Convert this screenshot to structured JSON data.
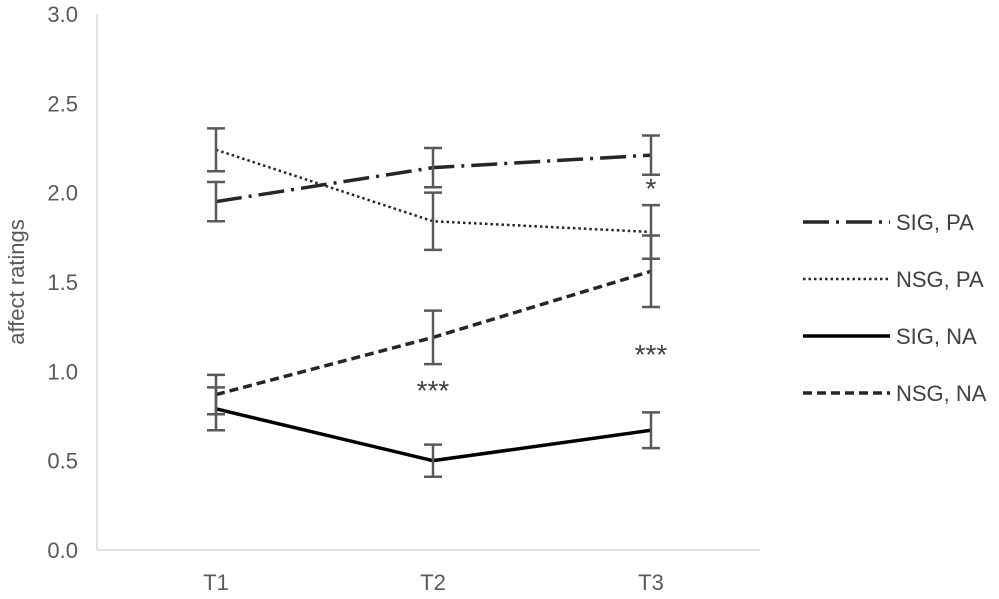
{
  "chart_data": {
    "type": "line",
    "title": "",
    "xlabel": "",
    "ylabel": "affect ratings",
    "categories": [
      "T1",
      "T2",
      "T3"
    ],
    "ylim": [
      0.0,
      3.0
    ],
    "yticks": [
      "0.0",
      "0.5",
      "1.0",
      "1.5",
      "2.0",
      "2.5",
      "3.0"
    ],
    "grid": false,
    "legend_position": "right",
    "series": [
      {
        "name": "SIG, PA",
        "style": "dash-dot",
        "color": "#262626",
        "width": 3.5,
        "values": [
          1.95,
          2.14,
          2.21
        ],
        "err_low": [
          1.84,
          2.03,
          2.1
        ],
        "err_high": [
          2.06,
          2.25,
          2.32
        ]
      },
      {
        "name": "NSG, PA",
        "style": "dotted",
        "color": "#262626",
        "width": 2.5,
        "values": [
          2.24,
          1.84,
          1.78
        ],
        "err_low": [
          2.12,
          1.68,
          1.63
        ],
        "err_high": [
          2.36,
          2.0,
          1.93
        ]
      },
      {
        "name": "SIG, NA",
        "style": "solid",
        "color": "#000000",
        "width": 3.5,
        "values": [
          0.79,
          0.5,
          0.67
        ],
        "err_low": [
          0.67,
          0.41,
          0.57
        ],
        "err_high": [
          0.91,
          0.59,
          0.77
        ]
      },
      {
        "name": "NSG, NA",
        "style": "dashed",
        "color": "#262626",
        "width": 3.5,
        "values": [
          0.87,
          1.19,
          1.56
        ],
        "err_low": [
          0.76,
          1.04,
          1.36
        ],
        "err_high": [
          0.98,
          1.34,
          1.76
        ]
      }
    ],
    "annotations": [
      {
        "text": "***",
        "x": "T2",
        "y": 0.84
      },
      {
        "text": "*",
        "x": "T3",
        "y": 1.97
      },
      {
        "text": "***",
        "x": "T3",
        "y": 1.04
      }
    ]
  }
}
